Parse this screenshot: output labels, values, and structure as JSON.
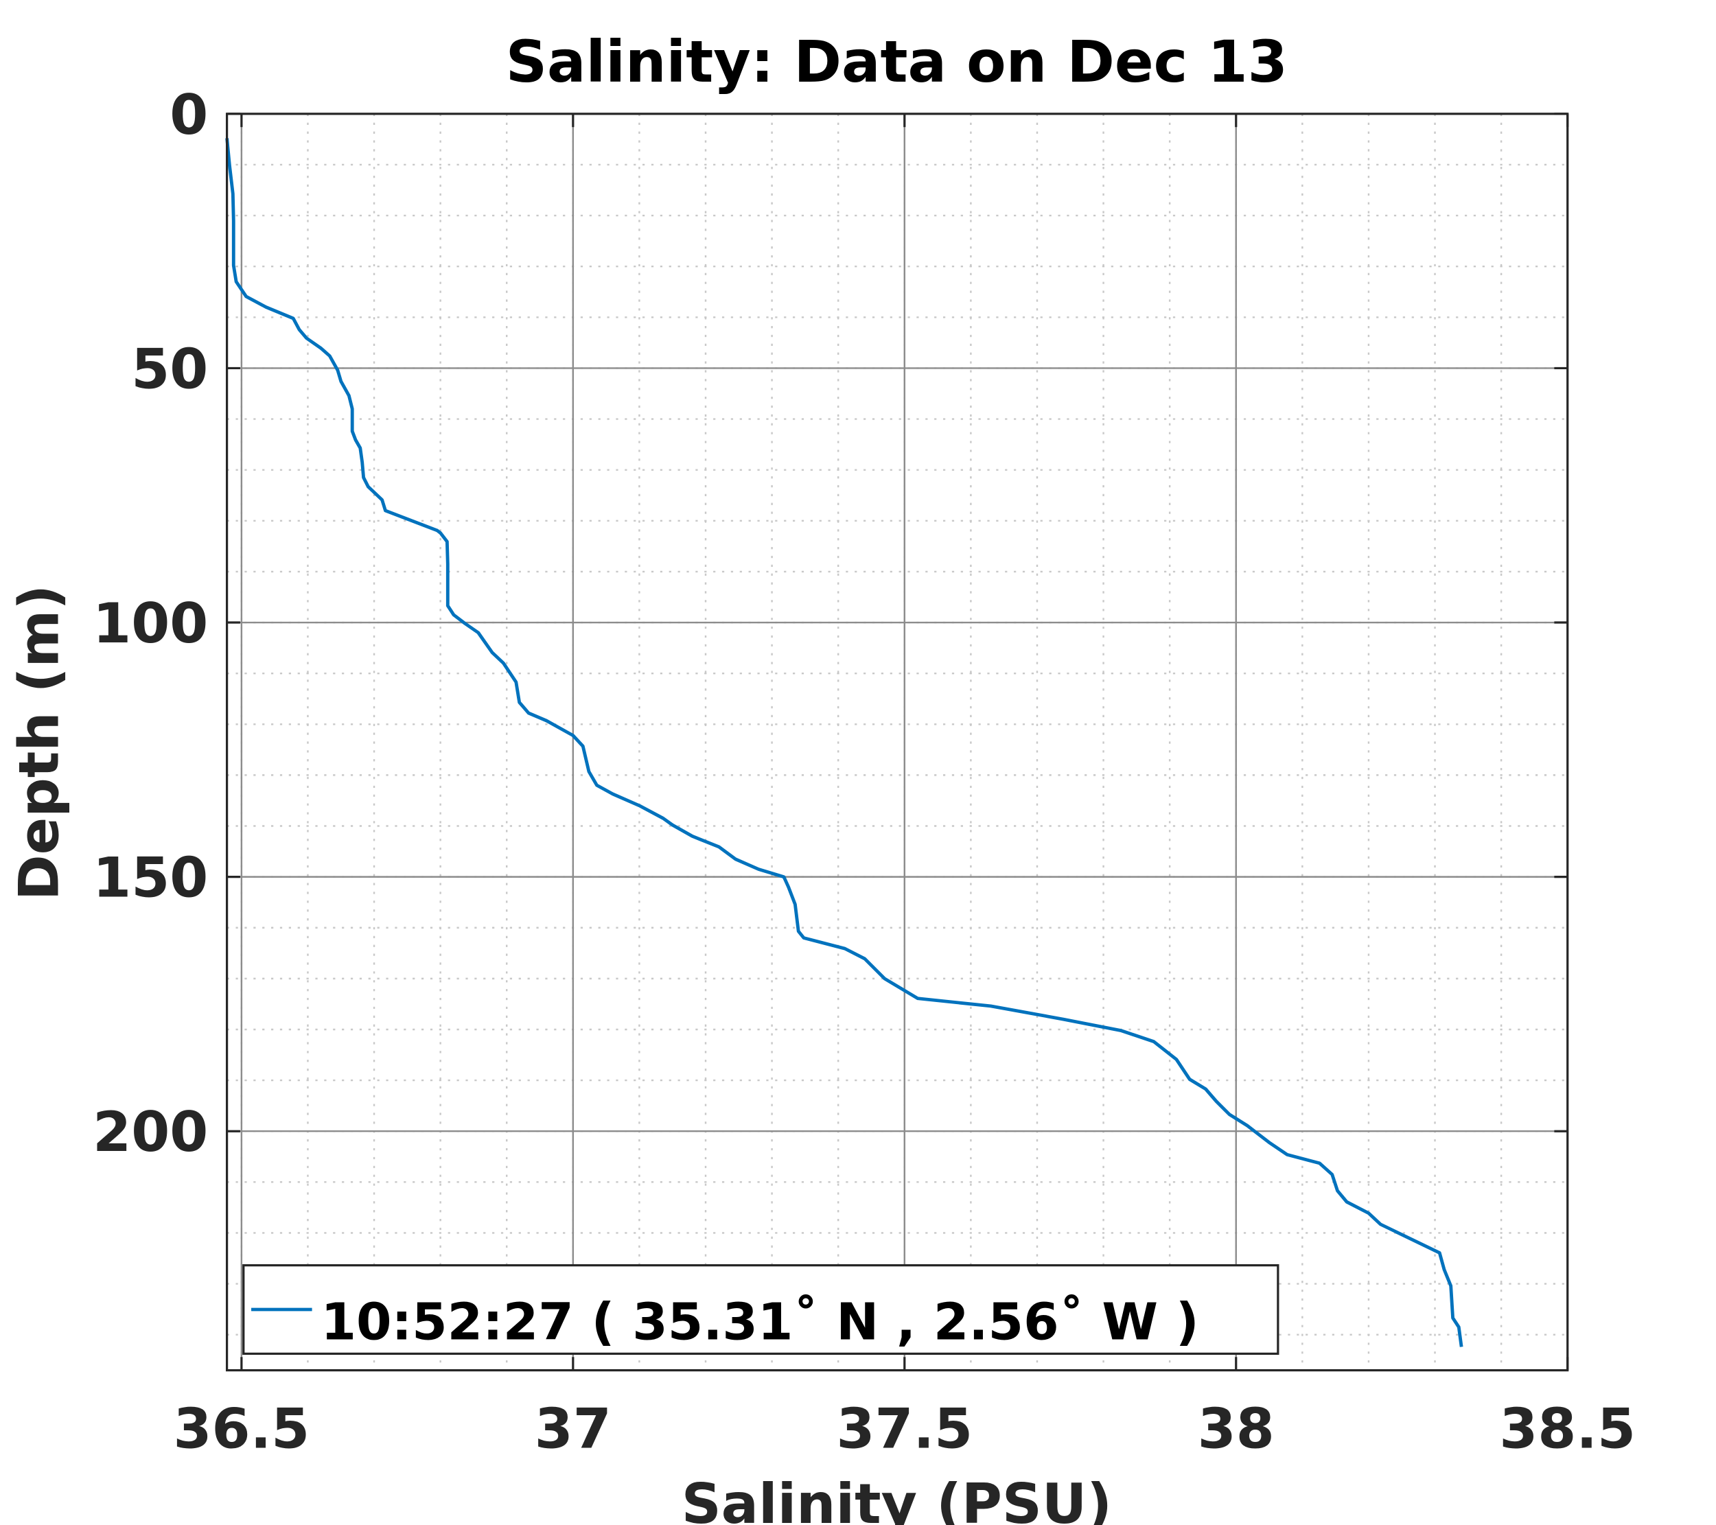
{
  "chart_data": {
    "type": "line",
    "title": "Salinity: Data on Dec 13",
    "xlabel": "Salinity (PSU)",
    "ylabel": "Depth (m)",
    "xlim": [
      36.478,
      38.5
    ],
    "ylim": [
      0,
      247
    ],
    "y_reversed": true,
    "grid": true,
    "minor_grid": true,
    "xticks": [
      36.5,
      37,
      37.5,
      38,
      38.5
    ],
    "xtick_labels": [
      "36.5",
      "37",
      "37.5",
      "38",
      "38.5"
    ],
    "yticks": [
      0,
      50,
      100,
      150,
      200
    ],
    "ytick_labels": [
      "0",
      "50",
      "100",
      "150",
      "200"
    ],
    "legend_placement": "bottom-left",
    "series": [
      {
        "name": "10:52:27 ( 35.31˚ N , 2.56˚ W )",
        "color": "#0072BD",
        "salinity": [
          36.478,
          36.482,
          36.487,
          36.488,
          36.488,
          36.492,
          36.507,
          36.537,
          36.578,
          36.587,
          36.598,
          36.62,
          36.633,
          36.645,
          36.65,
          36.662,
          36.667,
          36.667,
          36.672,
          36.679,
          36.682,
          36.684,
          36.691,
          36.712,
          36.717,
          36.795,
          36.8,
          36.81,
          36.811,
          36.811,
          36.82,
          36.837,
          36.857,
          36.878,
          36.895,
          36.914,
          36.919,
          36.933,
          36.96,
          37.0,
          37.015,
          37.024,
          37.036,
          37.06,
          37.1,
          37.136,
          37.15,
          37.18,
          37.22,
          37.245,
          37.28,
          37.318,
          37.325,
          37.335,
          37.34,
          37.348,
          37.41,
          37.44,
          37.47,
          37.52,
          37.63,
          37.74,
          37.826,
          37.876,
          37.91,
          37.93,
          37.954,
          37.97,
          37.99,
          38.017,
          38.03,
          38.05,
          38.077,
          38.126,
          38.145,
          38.153,
          38.167,
          38.2,
          38.218,
          38.307,
          38.314,
          38.324,
          38.327,
          38.336,
          38.34
        ],
        "depth": [
          4.8,
          10.2,
          15.7,
          21,
          29.8,
          33,
          35.9,
          38,
          40.2,
          42.4,
          44.1,
          46.1,
          47.6,
          50.4,
          52.6,
          55.4,
          58,
          62.4,
          64.1,
          65.7,
          68.5,
          71.5,
          73.3,
          75.9,
          78,
          81.9,
          82.4,
          84.1,
          88.5,
          96.7,
          98.5,
          100.2,
          102,
          105.9,
          108,
          111.7,
          115.7,
          117.8,
          119.3,
          122.2,
          124.3,
          129.3,
          132,
          133.7,
          136,
          138.5,
          139.8,
          142,
          144.1,
          146.5,
          148.5,
          150,
          152,
          155.4,
          160.7,
          162,
          164.1,
          166.1,
          170,
          173.9,
          175.4,
          178,
          180.2,
          182.4,
          185.9,
          189.8,
          191.7,
          194.1,
          196.7,
          198.9,
          200.2,
          202.2,
          204.6,
          206.3,
          208.5,
          211.7,
          213.9,
          216.1,
          218.3,
          223.9,
          227.2,
          230.4,
          236.7,
          238.5,
          242.4
        ]
      }
    ]
  }
}
